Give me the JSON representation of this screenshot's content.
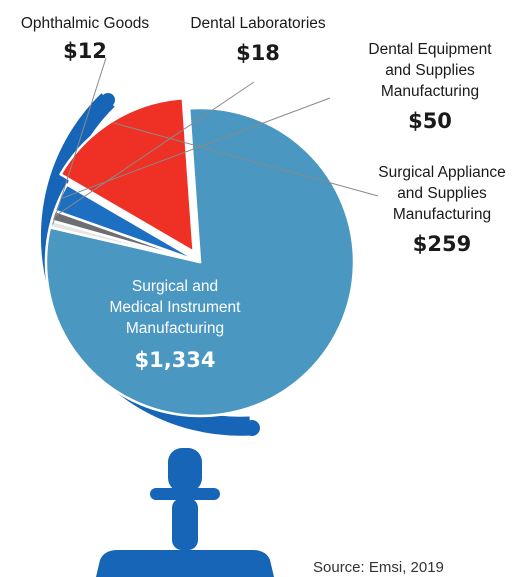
{
  "chart_data": {
    "type": "pie",
    "title": "",
    "categories": [
      "Ophthalmic Goods",
      "Dental Laboratories",
      "Dental Equipment and Supplies Manufacturing",
      "Surgical Appliance and Supplies Manufacturing",
      "Surgical and Medical Instrument Manufacturing"
    ],
    "values": [
      12,
      18,
      50,
      259,
      1334
    ],
    "value_labels": [
      "$12",
      "$18",
      "$50",
      "$259",
      "$1,334"
    ],
    "label_lines": [
      [
        "Ophthalmic Goods"
      ],
      [
        "Dental Laboratories"
      ],
      [
        "Dental Equipment",
        "and Supplies",
        "Manufacturing"
      ],
      [
        "Surgical Appliance",
        "and Supplies",
        "Manufacturing"
      ],
      [
        "Surgical and",
        "Medical Instrument",
        "Manufacturing"
      ]
    ],
    "colors": [
      "#e6e6e6",
      "#6d6e71",
      "#1d6fc2",
      "#ee3124",
      "#4a97c2"
    ],
    "exploded": [
      false,
      false,
      false,
      true,
      false
    ],
    "source": "Source: Emsi, 2019"
  },
  "decoration": {
    "globe_stand_color": "#1665b6",
    "slice_outline_color": "#ffffff"
  }
}
